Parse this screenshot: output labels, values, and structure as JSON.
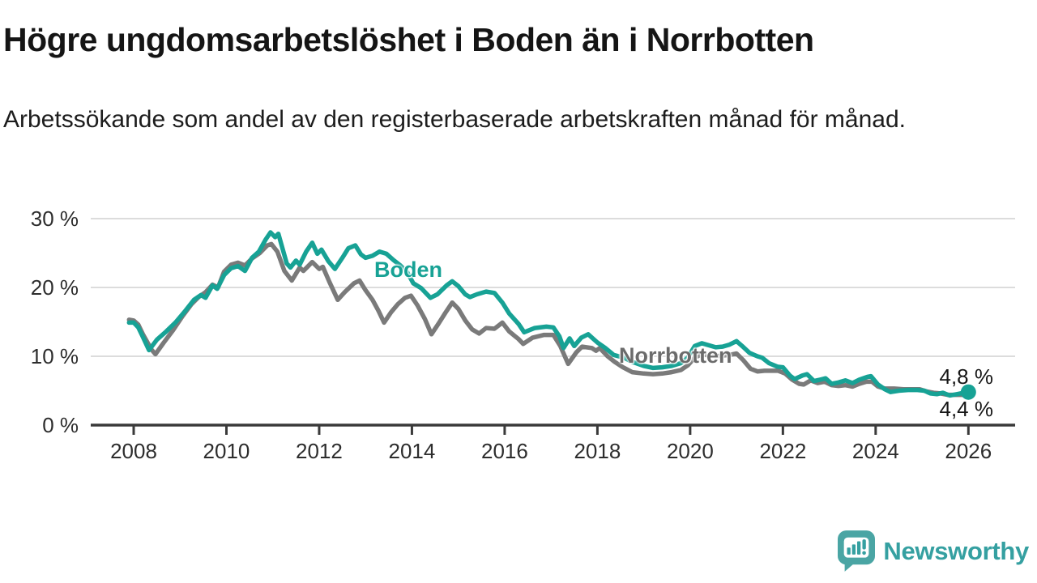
{
  "header": {
    "title": "Högre ungdomsarbetslöshet i Boden än i Norrbotten",
    "subtitle": "Arbetssökande som andel av den registerbaserade arbetskraften månad för månad."
  },
  "colors": {
    "boden": "#17a295",
    "norrbotten": "#7a7a7a",
    "norrbotten_label": "#6b6b6b",
    "grid": "#dcdcdc",
    "axis": "#3a3a3a",
    "text": "#2d2d2d",
    "brand": "#35a0a1"
  },
  "chart_data": {
    "type": "line",
    "title": "",
    "xlabel": "",
    "ylabel": "",
    "grid": "horizontal",
    "x_axis": {
      "ticks": [
        "2008",
        "2010",
        "2012",
        "2014",
        "2016",
        "2018",
        "2020",
        "2022",
        "2024",
        "2026"
      ],
      "min": 2007.9,
      "max": 2027
    },
    "y_axis": {
      "min": 0,
      "max": 31,
      "ticks": [
        {
          "value": 0,
          "label": "0 %"
        },
        {
          "value": 10,
          "label": "10 %"
        },
        {
          "value": 20,
          "label": "20 %"
        },
        {
          "value": 30,
          "label": "30 %"
        }
      ]
    },
    "series": [
      {
        "name": "Boden",
        "color": "#17a295",
        "end_label": "4,8 %",
        "end_value": 4.8,
        "end_dot": true,
        "points": [
          [
            2007.9,
            14.9
          ],
          [
            2008.0,
            14.9
          ],
          [
            2008.1,
            14.2
          ],
          [
            2008.2,
            12.8
          ],
          [
            2008.33,
            10.9
          ],
          [
            2008.5,
            12.4
          ],
          [
            2008.7,
            13.6
          ],
          [
            2008.9,
            14.9
          ],
          [
            2009.1,
            16.5
          ],
          [
            2009.3,
            18.2
          ],
          [
            2009.45,
            18.9
          ],
          [
            2009.55,
            18.5
          ],
          [
            2009.7,
            20.3
          ],
          [
            2009.8,
            19.8
          ],
          [
            2009.95,
            21.8
          ],
          [
            2010.1,
            22.8
          ],
          [
            2010.25,
            23.1
          ],
          [
            2010.4,
            22.4
          ],
          [
            2010.55,
            24.3
          ],
          [
            2010.7,
            25.2
          ],
          [
            2010.85,
            27.0
          ],
          [
            2010.95,
            28.0
          ],
          [
            2011.05,
            27.3
          ],
          [
            2011.12,
            27.8
          ],
          [
            2011.3,
            23.5
          ],
          [
            2011.38,
            22.9
          ],
          [
            2011.5,
            23.9
          ],
          [
            2011.58,
            23.3
          ],
          [
            2011.72,
            25.2
          ],
          [
            2011.85,
            26.5
          ],
          [
            2011.96,
            24.9
          ],
          [
            2012.05,
            25.5
          ],
          [
            2012.2,
            23.8
          ],
          [
            2012.34,
            22.7
          ],
          [
            2012.5,
            24.3
          ],
          [
            2012.63,
            25.7
          ],
          [
            2012.78,
            26.1
          ],
          [
            2012.9,
            24.8
          ],
          [
            2013.0,
            24.3
          ],
          [
            2013.15,
            24.6
          ],
          [
            2013.3,
            25.2
          ],
          [
            2013.45,
            24.9
          ],
          [
            2013.6,
            24.0
          ],
          [
            2013.75,
            23.2
          ],
          [
            2013.9,
            22.2
          ],
          [
            2014.03,
            20.6
          ],
          [
            2014.2,
            19.9
          ],
          [
            2014.4,
            18.5
          ],
          [
            2014.55,
            19.0
          ],
          [
            2014.75,
            20.3
          ],
          [
            2014.87,
            20.9
          ],
          [
            2015.0,
            20.2
          ],
          [
            2015.15,
            19.0
          ],
          [
            2015.25,
            18.6
          ],
          [
            2015.4,
            19.0
          ],
          [
            2015.6,
            19.4
          ],
          [
            2015.78,
            19.2
          ],
          [
            2015.95,
            17.8
          ],
          [
            2016.1,
            16.2
          ],
          [
            2016.3,
            14.7
          ],
          [
            2016.42,
            13.5
          ],
          [
            2016.65,
            14.1
          ],
          [
            2016.9,
            14.3
          ],
          [
            2017.05,
            14.2
          ],
          [
            2017.18,
            12.9
          ],
          [
            2017.27,
            11.2
          ],
          [
            2017.4,
            12.6
          ],
          [
            2017.5,
            11.5
          ],
          [
            2017.65,
            12.7
          ],
          [
            2017.8,
            13.2
          ],
          [
            2018.0,
            12.0
          ],
          [
            2018.17,
            11.2
          ],
          [
            2018.35,
            10.2
          ],
          [
            2018.57,
            9.8
          ],
          [
            2018.75,
            9.2
          ],
          [
            2019.0,
            8.6
          ],
          [
            2019.2,
            8.3
          ],
          [
            2019.4,
            8.4
          ],
          [
            2019.6,
            8.6
          ],
          [
            2019.8,
            9.0
          ],
          [
            2019.95,
            9.8
          ],
          [
            2020.1,
            11.5
          ],
          [
            2020.25,
            11.9
          ],
          [
            2020.4,
            11.6
          ],
          [
            2020.55,
            11.3
          ],
          [
            2020.7,
            11.4
          ],
          [
            2020.85,
            11.7
          ],
          [
            2021.0,
            12.2
          ],
          [
            2021.12,
            11.5
          ],
          [
            2021.28,
            10.5
          ],
          [
            2021.45,
            10.0
          ],
          [
            2021.55,
            9.8
          ],
          [
            2021.7,
            9.0
          ],
          [
            2021.88,
            8.5
          ],
          [
            2022.0,
            8.4
          ],
          [
            2022.15,
            7.2
          ],
          [
            2022.25,
            6.7
          ],
          [
            2022.42,
            7.2
          ],
          [
            2022.52,
            7.4
          ],
          [
            2022.67,
            6.4
          ],
          [
            2022.8,
            6.6
          ],
          [
            2022.92,
            6.8
          ],
          [
            2023.05,
            6.0
          ],
          [
            2023.2,
            6.2
          ],
          [
            2023.35,
            6.5
          ],
          [
            2023.5,
            6.1
          ],
          [
            2023.65,
            6.6
          ],
          [
            2023.82,
            7.0
          ],
          [
            2023.9,
            7.1
          ],
          [
            2024.05,
            5.9
          ],
          [
            2024.2,
            5.2
          ],
          [
            2024.32,
            4.8
          ],
          [
            2024.5,
            5.0
          ],
          [
            2024.7,
            5.1
          ],
          [
            2024.9,
            5.1
          ],
          [
            2025.05,
            5.0
          ],
          [
            2025.18,
            4.6
          ],
          [
            2025.32,
            4.5
          ],
          [
            2025.45,
            4.7
          ],
          [
            2025.6,
            4.3
          ],
          [
            2025.75,
            4.5
          ],
          [
            2025.9,
            4.7
          ],
          [
            2026.0,
            4.8
          ]
        ]
      },
      {
        "name": "Norrbotten",
        "color": "#7a7a7a",
        "end_label": "4,4 %",
        "end_value": 4.4,
        "end_dot": true,
        "points": [
          [
            2007.9,
            15.3
          ],
          [
            2008.0,
            15.2
          ],
          [
            2008.1,
            14.6
          ],
          [
            2008.2,
            13.2
          ],
          [
            2008.38,
            11.0
          ],
          [
            2008.47,
            10.3
          ],
          [
            2008.65,
            12.0
          ],
          [
            2008.85,
            13.8
          ],
          [
            2009.05,
            15.8
          ],
          [
            2009.25,
            17.6
          ],
          [
            2009.4,
            18.6
          ],
          [
            2009.55,
            19.3
          ],
          [
            2009.7,
            20.4
          ],
          [
            2009.82,
            20.0
          ],
          [
            2009.95,
            22.3
          ],
          [
            2010.1,
            23.3
          ],
          [
            2010.25,
            23.6
          ],
          [
            2010.4,
            23.2
          ],
          [
            2010.55,
            24.2
          ],
          [
            2010.72,
            25.0
          ],
          [
            2010.88,
            26.1
          ],
          [
            2010.97,
            26.3
          ],
          [
            2011.1,
            25.2
          ],
          [
            2011.25,
            22.4
          ],
          [
            2011.41,
            21.0
          ],
          [
            2011.58,
            22.9
          ],
          [
            2011.66,
            22.4
          ],
          [
            2011.85,
            23.7
          ],
          [
            2012.0,
            22.7
          ],
          [
            2012.08,
            23.0
          ],
          [
            2012.22,
            20.8
          ],
          [
            2012.4,
            18.2
          ],
          [
            2012.55,
            19.3
          ],
          [
            2012.75,
            20.6
          ],
          [
            2012.87,
            21.0
          ],
          [
            2013.0,
            19.6
          ],
          [
            2013.15,
            18.2
          ],
          [
            2013.28,
            16.6
          ],
          [
            2013.4,
            14.9
          ],
          [
            2013.55,
            16.4
          ],
          [
            2013.7,
            17.6
          ],
          [
            2013.85,
            18.5
          ],
          [
            2013.98,
            18.8
          ],
          [
            2014.12,
            17.4
          ],
          [
            2014.28,
            15.4
          ],
          [
            2014.42,
            13.2
          ],
          [
            2014.58,
            14.8
          ],
          [
            2014.72,
            16.3
          ],
          [
            2014.87,
            17.8
          ],
          [
            2015.0,
            16.9
          ],
          [
            2015.15,
            15.2
          ],
          [
            2015.3,
            13.9
          ],
          [
            2015.45,
            13.3
          ],
          [
            2015.6,
            14.1
          ],
          [
            2015.78,
            14.0
          ],
          [
            2015.95,
            14.9
          ],
          [
            2016.1,
            13.6
          ],
          [
            2016.3,
            12.5
          ],
          [
            2016.4,
            11.8
          ],
          [
            2016.6,
            12.7
          ],
          [
            2016.85,
            13.1
          ],
          [
            2017.05,
            13.1
          ],
          [
            2017.2,
            11.5
          ],
          [
            2017.37,
            8.9
          ],
          [
            2017.55,
            10.6
          ],
          [
            2017.67,
            11.4
          ],
          [
            2017.88,
            11.2
          ],
          [
            2017.97,
            10.8
          ],
          [
            2018.05,
            11.2
          ],
          [
            2018.22,
            10.0
          ],
          [
            2018.37,
            9.2
          ],
          [
            2018.55,
            8.4
          ],
          [
            2018.75,
            7.7
          ],
          [
            2019.0,
            7.5
          ],
          [
            2019.2,
            7.4
          ],
          [
            2019.4,
            7.5
          ],
          [
            2019.6,
            7.7
          ],
          [
            2019.8,
            8.0
          ],
          [
            2019.95,
            8.7
          ],
          [
            2020.1,
            9.8
          ],
          [
            2020.25,
            10.3
          ],
          [
            2020.4,
            10.1
          ],
          [
            2020.55,
            10.0
          ],
          [
            2020.7,
            10.1
          ],
          [
            2020.85,
            10.2
          ],
          [
            2021.0,
            10.4
          ],
          [
            2021.15,
            9.4
          ],
          [
            2021.3,
            8.2
          ],
          [
            2021.45,
            7.8
          ],
          [
            2021.6,
            7.9
          ],
          [
            2021.75,
            7.9
          ],
          [
            2021.9,
            7.9
          ],
          [
            2022.05,
            7.5
          ],
          [
            2022.2,
            6.6
          ],
          [
            2022.35,
            6.0
          ],
          [
            2022.45,
            5.9
          ],
          [
            2022.6,
            6.5
          ],
          [
            2022.75,
            6.1
          ],
          [
            2022.9,
            6.3
          ],
          [
            2023.05,
            5.8
          ],
          [
            2023.2,
            5.7
          ],
          [
            2023.35,
            5.8
          ],
          [
            2023.5,
            5.6
          ],
          [
            2023.65,
            6.0
          ],
          [
            2023.8,
            6.3
          ],
          [
            2023.92,
            6.3
          ],
          [
            2024.05,
            5.6
          ],
          [
            2024.2,
            5.3
          ],
          [
            2024.4,
            5.3
          ],
          [
            2024.6,
            5.2
          ],
          [
            2024.8,
            5.2
          ],
          [
            2024.95,
            5.2
          ],
          [
            2025.1,
            4.9
          ],
          [
            2025.25,
            4.7
          ],
          [
            2025.4,
            4.6
          ],
          [
            2025.55,
            4.4
          ],
          [
            2025.7,
            4.4
          ],
          [
            2025.85,
            4.4
          ],
          [
            2026.0,
            4.4
          ]
        ]
      }
    ]
  },
  "footer": {
    "brand": "Newsworthy"
  }
}
